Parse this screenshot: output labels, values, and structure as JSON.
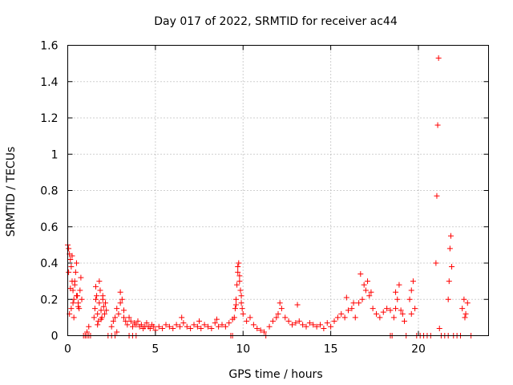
{
  "chart_data": {
    "type": "scatter",
    "title": "Day 017 of 2022, SRMTID for receiver ac44",
    "xlabel": "GPS time / hours",
    "ylabel": "SRMTID / TECUs",
    "xlim": [
      0,
      24
    ],
    "ylim": [
      0,
      1.6
    ],
    "xticks": [
      0,
      5,
      10,
      15,
      20
    ],
    "yticks": [
      0,
      0.2,
      0.4,
      0.6,
      0.8,
      1.0,
      1.2,
      1.4,
      1.6
    ],
    "xtick_labels": [
      "0",
      "5",
      "10",
      "15",
      "20"
    ],
    "ytick_labels": [
      "0",
      "0.2",
      "0.4",
      "0.6",
      "0.8",
      "1",
      "1.2",
      "1.4",
      "1.6"
    ],
    "grid": true,
    "marker": "+",
    "color": "#ff0000",
    "series": [
      {
        "name": "SRMTID",
        "x": [
          0.0,
          0.05,
          0.1,
          0.15,
          0.2,
          0.25,
          0.3,
          0.35,
          0.4,
          0.45,
          0.5,
          0.55,
          0.6,
          0.65,
          0.7,
          0.75,
          0.8,
          0.05,
          0.1,
          0.2,
          0.3,
          0.4,
          0.5,
          0.6,
          0.35,
          0.25,
          0.15,
          1.0,
          1.1,
          1.2,
          1.5,
          1.55,
          1.6,
          1.65,
          1.7,
          1.75,
          1.8,
          1.85,
          1.9,
          1.95,
          2.0,
          2.05,
          2.1,
          2.15,
          2.2,
          1.6,
          1.8,
          2.0,
          1.7,
          1.9,
          2.5,
          2.6,
          2.7,
          2.8,
          2.9,
          3.0,
          3.1,
          3.2,
          3.3,
          3.4,
          3.5,
          3.6,
          3.7,
          3.8,
          3.9,
          4.0,
          4.1,
          4.2,
          4.3,
          4.4,
          4.5,
          4.6,
          4.7,
          4.8,
          4.9,
          5.0,
          3.0,
          3.2,
          2.8,
          5.2,
          5.4,
          5.6,
          5.8,
          6.0,
          6.2,
          6.4,
          6.6,
          6.8,
          7.0,
          7.2,
          7.4,
          7.6,
          7.8,
          8.0,
          8.2,
          8.4,
          8.6,
          8.8,
          9.0,
          9.2,
          9.4,
          6.5,
          7.5,
          8.5,
          9.5,
          9.55,
          9.6,
          9.65,
          9.7,
          9.75,
          9.8,
          9.85,
          9.9,
          9.95,
          10.0,
          9.7,
          9.8,
          9.9,
          9.6,
          10.2,
          10.4,
          10.6,
          10.8,
          11.0,
          11.2,
          11.5,
          11.7,
          11.9,
          12.0,
          12.2,
          12.4,
          12.6,
          12.8,
          13.0,
          13.2,
          13.4,
          13.6,
          13.8,
          14.0,
          14.2,
          14.4,
          14.6,
          14.8,
          12.1,
          13.1,
          15.0,
          15.2,
          15.4,
          15.6,
          15.8,
          16.0,
          16.2,
          16.4,
          16.6,
          16.8,
          17.0,
          17.2,
          17.4,
          17.6,
          17.8,
          18.0,
          18.2,
          18.4,
          16.7,
          16.9,
          17.1,
          17.3,
          15.9,
          16.3,
          18.6,
          18.7,
          18.8,
          18.9,
          19.0,
          19.1,
          19.2,
          19.5,
          19.6,
          19.7,
          19.8,
          18.7,
          19.6,
          21.0,
          21.05,
          21.1,
          21.15,
          21.2,
          21.7,
          21.75,
          21.8,
          21.85,
          21.9,
          22.5,
          22.6,
          22.7,
          22.8,
          22.65,
          0.9,
          1.0,
          1.1,
          1.2,
          1.3,
          2.3,
          2.5,
          2.7,
          3.5,
          3.7,
          3.9,
          9.3,
          9.4,
          11.3,
          18.4,
          18.5,
          19.3,
          19.9,
          20.1,
          20.3,
          20.5,
          20.7,
          21.3,
          21.5,
          21.7,
          22.0,
          22.2,
          22.4,
          23.0
        ],
        "y": [
          0.5,
          0.48,
          0.45,
          0.42,
          0.38,
          0.3,
          0.25,
          0.2,
          0.28,
          0.35,
          0.4,
          0.22,
          0.18,
          0.15,
          0.25,
          0.32,
          0.2,
          0.35,
          0.12,
          0.15,
          0.18,
          0.3,
          0.22,
          0.16,
          0.1,
          0.44,
          0.26,
          0.0,
          0.02,
          0.05,
          0.1,
          0.15,
          0.2,
          0.22,
          0.12,
          0.08,
          0.18,
          0.25,
          0.14,
          0.1,
          0.2,
          0.16,
          0.12,
          0.18,
          0.14,
          0.27,
          0.3,
          0.22,
          0.06,
          0.09,
          0.05,
          0.08,
          0.1,
          0.15,
          0.12,
          0.18,
          0.2,
          0.1,
          0.08,
          0.06,
          0.1,
          0.08,
          0.05,
          0.07,
          0.06,
          0.08,
          0.05,
          0.06,
          0.04,
          0.05,
          0.07,
          0.05,
          0.04,
          0.06,
          0.05,
          0.03,
          0.24,
          0.14,
          0.02,
          0.05,
          0.04,
          0.06,
          0.05,
          0.04,
          0.06,
          0.05,
          0.07,
          0.05,
          0.04,
          0.06,
          0.05,
          0.04,
          0.06,
          0.05,
          0.04,
          0.07,
          0.05,
          0.06,
          0.05,
          0.07,
          0.09,
          0.1,
          0.08,
          0.09,
          0.1,
          0.15,
          0.2,
          0.28,
          0.35,
          0.4,
          0.3,
          0.25,
          0.18,
          0.15,
          0.12,
          0.38,
          0.33,
          0.22,
          0.17,
          0.08,
          0.1,
          0.06,
          0.04,
          0.03,
          0.02,
          0.05,
          0.08,
          0.1,
          0.12,
          0.15,
          0.1,
          0.08,
          0.06,
          0.07,
          0.08,
          0.06,
          0.05,
          0.07,
          0.06,
          0.05,
          0.06,
          0.04,
          0.07,
          0.18,
          0.17,
          0.05,
          0.08,
          0.1,
          0.12,
          0.1,
          0.14,
          0.15,
          0.1,
          0.18,
          0.2,
          0.25,
          0.22,
          0.15,
          0.12,
          0.1,
          0.13,
          0.15,
          0.14,
          0.34,
          0.28,
          0.3,
          0.24,
          0.21,
          0.18,
          0.1,
          0.15,
          0.2,
          0.28,
          0.14,
          0.12,
          0.08,
          0.2,
          0.25,
          0.3,
          0.15,
          0.24,
          0.12,
          0.4,
          0.77,
          1.16,
          1.53,
          0.04,
          0.2,
          0.3,
          0.48,
          0.55,
          0.38,
          0.15,
          0.2,
          0.12,
          0.18,
          0.1,
          0.0,
          0.0,
          0.0,
          0.0,
          0.0,
          0.0,
          0.0,
          0.0,
          0.0,
          0.0,
          0.0,
          0.0,
          0.0,
          0.0,
          0.0,
          0.0,
          0.0,
          0.0,
          0.0,
          0.0,
          0.0,
          0.0,
          0.0,
          0.0,
          0.0,
          0.0,
          0.0,
          0.0,
          0.0
        ]
      }
    ]
  }
}
